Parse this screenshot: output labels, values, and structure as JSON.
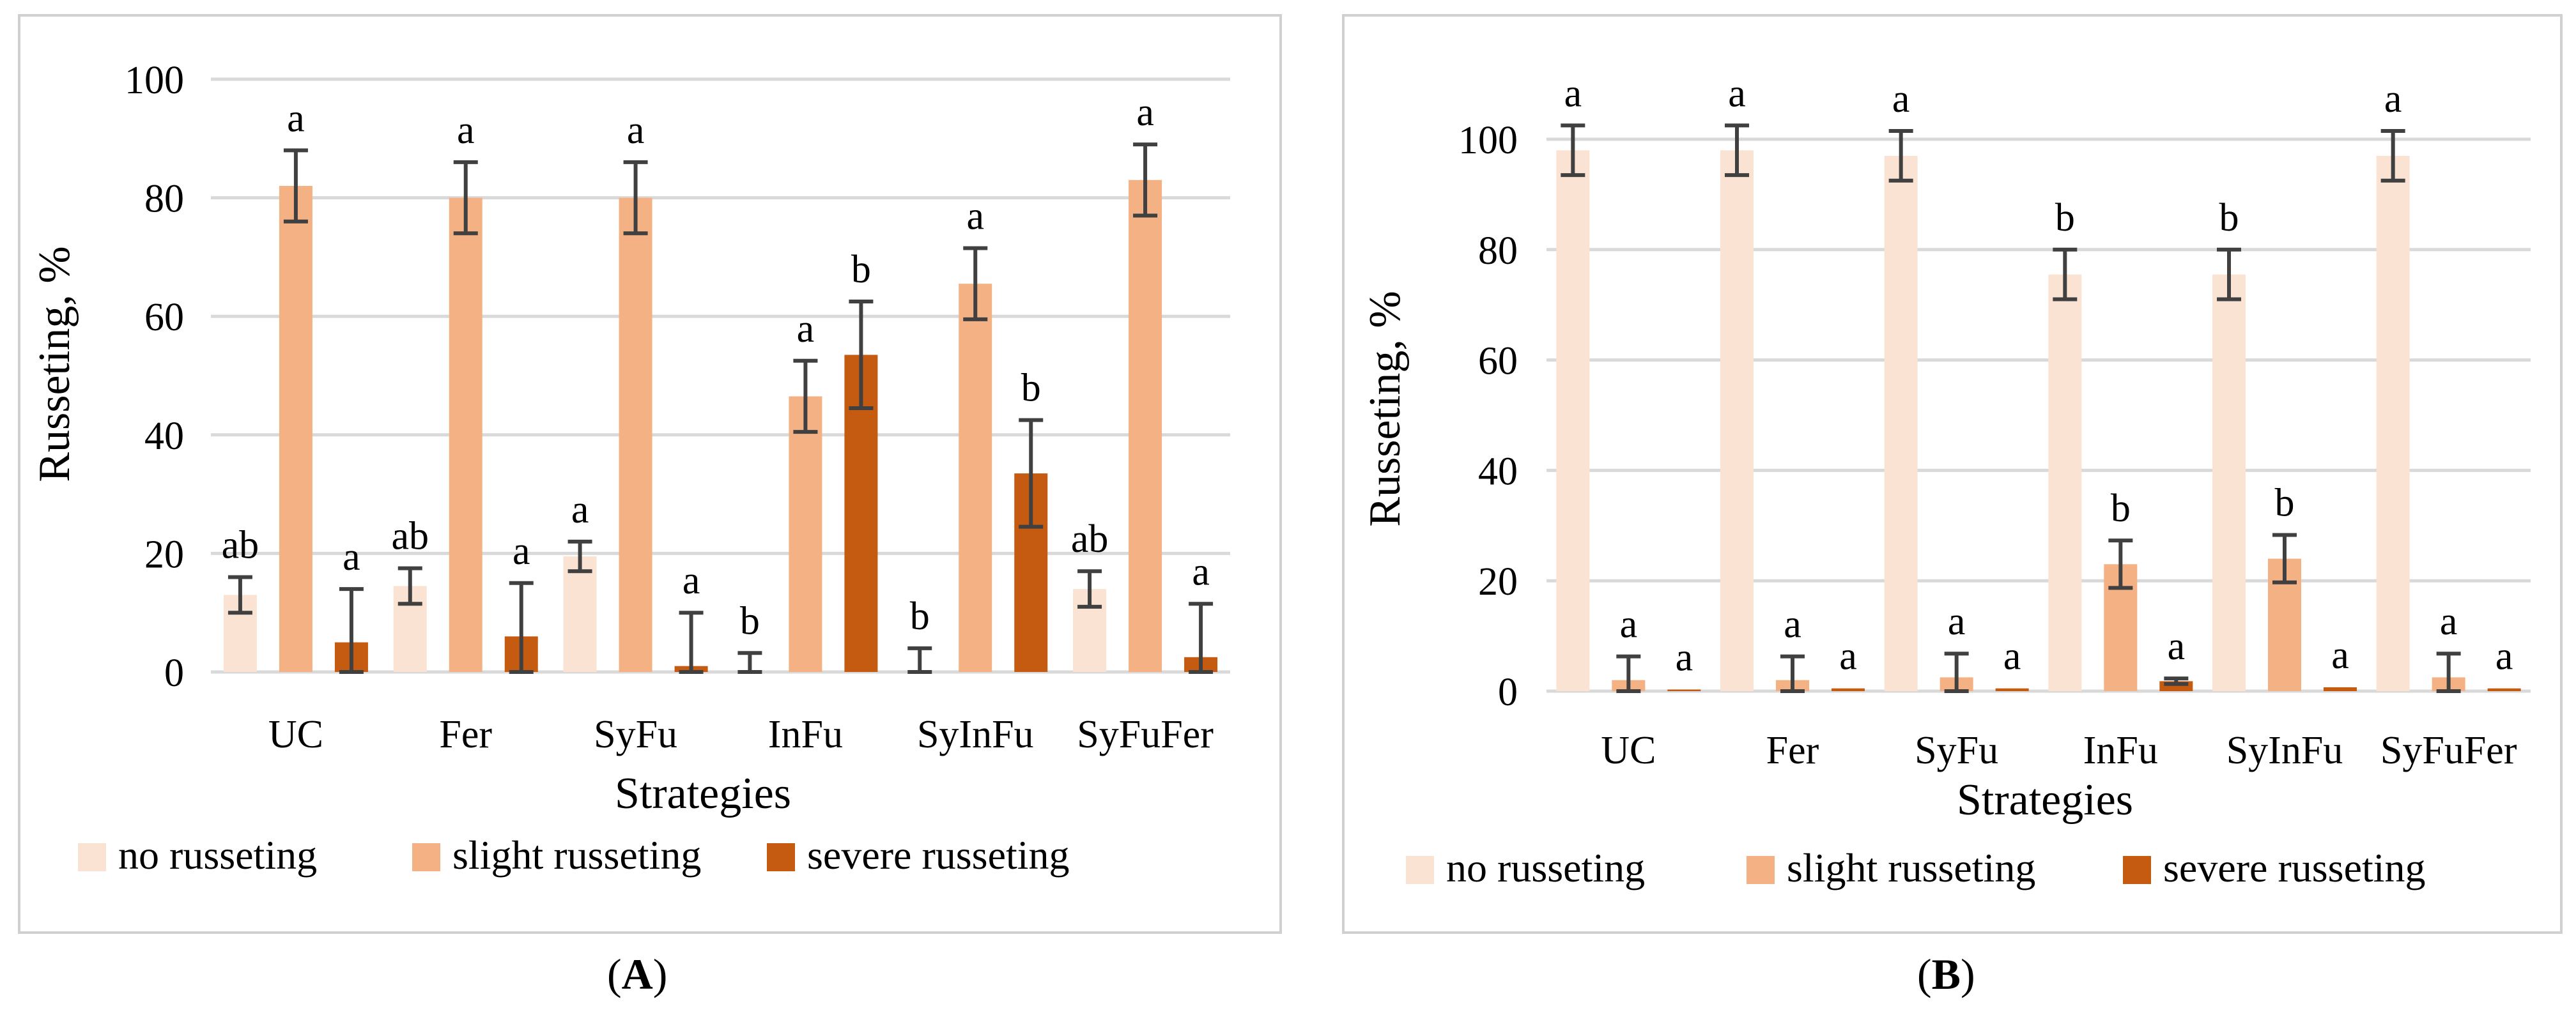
{
  "chart_data": [
    {
      "type": "bar",
      "panel": "A",
      "xlabel": "Strategies",
      "ylabel": "Russeting, %",
      "ylim": [
        0,
        100
      ],
      "yticks": [
        0,
        20,
        40,
        60,
        80,
        100
      ],
      "grid": true,
      "legend_position": "bottom",
      "categories": [
        "UC",
        "Fer",
        "SyFu",
        "InFu",
        "SyInFu",
        "SyFuFer"
      ],
      "series": [
        {
          "name": "no russeting",
          "color": "#fbe3d3",
          "values": [
            13,
            14.5,
            19.5,
            0,
            0,
            14
          ],
          "errors": [
            3,
            3,
            2.5,
            3.2,
            4,
            3
          ],
          "letters": [
            "ab",
            "ab",
            "a",
            "b",
            "b",
            "ab"
          ]
        },
        {
          "name": "slight russeting",
          "color": "#f4b183",
          "values": [
            82,
            80,
            80,
            46.5,
            65.5,
            83
          ],
          "errors": [
            6,
            6,
            6,
            6,
            6,
            6
          ],
          "letters": [
            "a",
            "a",
            "a",
            "a",
            "a",
            "a"
          ]
        },
        {
          "name": "severe russeting",
          "color": "#c55a11",
          "values": [
            5,
            6,
            1,
            53.5,
            33.5,
            2.5
          ],
          "errors": [
            9,
            9,
            9,
            9,
            9,
            9
          ],
          "letters": [
            "a",
            "a",
            "a",
            "b",
            "b",
            "a"
          ]
        }
      ]
    },
    {
      "type": "bar",
      "panel": "B",
      "xlabel": "Strategies",
      "ylabel": "Russeting, %",
      "ylim": [
        0,
        110
      ],
      "yticks": [
        0,
        20,
        40,
        60,
        80,
        100
      ],
      "grid": true,
      "legend_position": "bottom",
      "categories": [
        "UC",
        "Fer",
        "SyFu",
        "InFu",
        "SyInFu",
        "SyFuFer"
      ],
      "series": [
        {
          "name": "no russeting",
          "color": "#fbe3d3",
          "values": [
            98,
            98,
            97,
            75.5,
            75.5,
            97
          ],
          "errors": [
            4.5,
            4.5,
            4.5,
            4.5,
            4.5,
            4.5
          ],
          "letters": [
            "a",
            "a",
            "a",
            "b",
            "b",
            "a"
          ]
        },
        {
          "name": "slight russeting",
          "color": "#f4b183",
          "values": [
            2,
            2,
            2.5,
            23,
            24,
            2.5
          ],
          "errors": [
            4.3,
            4.3,
            4.3,
            4.3,
            4.3,
            4.3
          ],
          "letters": [
            "a",
            "a",
            "a",
            "b",
            "b",
            "a"
          ]
        },
        {
          "name": "severe russeting",
          "color": "#c55a11",
          "values": [
            0.3,
            0.5,
            0.5,
            1.8,
            0.7,
            0.5
          ],
          "errors": [
            0,
            0,
            0,
            0.5,
            0,
            0
          ],
          "letters": [
            "a",
            "a",
            "a",
            "a",
            "a",
            "a"
          ]
        }
      ]
    }
  ],
  "captions": [
    {
      "open": "(",
      "letter": "A",
      "close": ")"
    },
    {
      "open": "(",
      "letter": "B",
      "close": ")"
    }
  ]
}
